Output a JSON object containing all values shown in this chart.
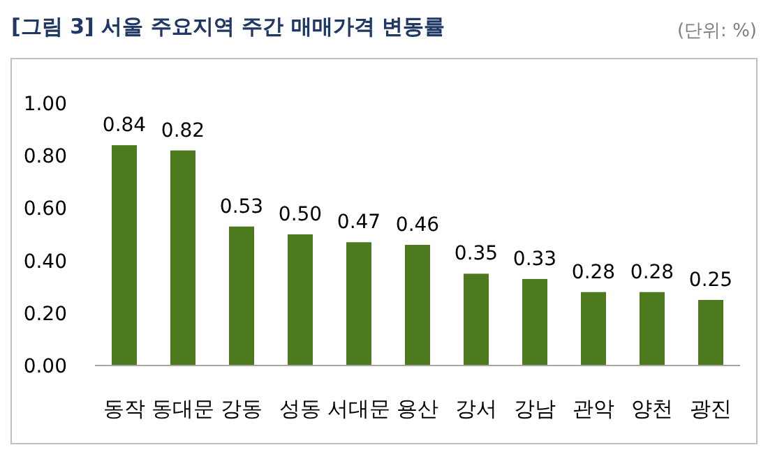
{
  "chart_data": {
    "type": "bar",
    "title": "[그림 3] 서울 주요지역 주간 매매가격 변동률",
    "annotations": [
      "(단위: %)"
    ],
    "categories": [
      "동작",
      "동대문",
      "강동",
      "성동",
      "서대문",
      "용산",
      "강서",
      "강남",
      "관악",
      "양천",
      "광진"
    ],
    "values": [
      0.84,
      0.82,
      0.53,
      0.5,
      0.47,
      0.46,
      0.35,
      0.33,
      0.28,
      0.28,
      0.25
    ],
    "value_labels": [
      "0.84",
      "0.82",
      "0.53",
      "0.50",
      "0.47",
      "0.46",
      "0.35",
      "0.33",
      "0.28",
      "0.28",
      "0.25"
    ],
    "color": "#4d7a1e",
    "ylim": [
      0,
      1
    ],
    "yticks": [
      {
        "value": 0,
        "label": "0.00"
      },
      {
        "value": 0.2,
        "label": "0.20"
      },
      {
        "value": 0.4,
        "label": "0.40"
      },
      {
        "value": 0.6,
        "label": "0.60"
      },
      {
        "value": 0.8,
        "label": "0.80"
      },
      {
        "value": 1,
        "label": "1.00"
      }
    ]
  }
}
